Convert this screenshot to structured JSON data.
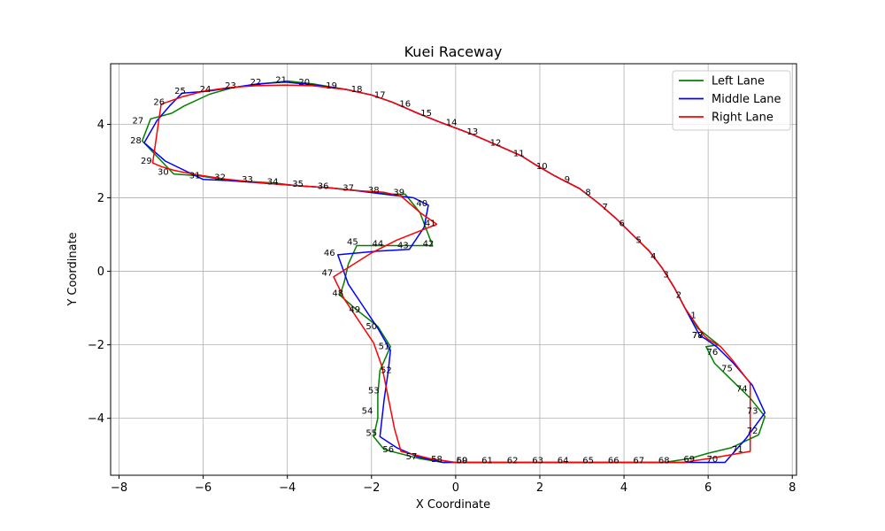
{
  "chart_data": {
    "type": "line",
    "title": "Kuei Raceway",
    "xlabel": "X Coordinate",
    "ylabel": "Y Coordinate",
    "xlim": [
      -8.2,
      8.1
    ],
    "ylim": [
      -5.55,
      5.65
    ],
    "xticks": [
      -8,
      -6,
      -4,
      -2,
      0,
      2,
      4,
      6,
      8
    ],
    "yticks": [
      -4,
      -2,
      0,
      2,
      4
    ],
    "grid": true,
    "legend_position": "top-right",
    "series": [
      {
        "name": "Left Lane",
        "color": "#008000",
        "x": [
          6.25,
          5.75,
          5.45,
          5.2,
          4.9,
          4.6,
          4.2,
          3.8,
          3.4,
          2.95,
          2.35,
          1.9,
          1.55,
          0.95,
          0.35,
          -0.35,
          -0.9,
          -1.5,
          -2.0,
          -2.6,
          -3.4,
          -4.0,
          -4.6,
          -5.3,
          -5.85,
          -6.45,
          -6.75,
          -7.25,
          -7.45,
          -6.95,
          -6.7,
          -6.1,
          -5.55,
          -4.95,
          -4.3,
          -3.7,
          -3.05,
          -2.35,
          -1.6,
          -1.2,
          -0.85,
          -0.55,
          -0.6,
          -1.05,
          -1.7,
          -2.35,
          -2.55,
          -2.65,
          -2.75,
          -2.35,
          -1.85,
          -1.55,
          -1.8,
          -1.85,
          -1.85,
          -1.95,
          -1.7,
          -0.85,
          -0.3,
          0.1,
          0.75,
          1.35,
          1.95,
          2.55,
          3.15,
          3.75,
          4.35,
          4.95,
          5.55,
          6.0,
          6.55,
          7.2,
          7.35,
          7.0,
          6.55,
          6.15,
          5.95,
          6.25
        ],
        "y": [
          -2.0,
          -1.55,
          -1.0,
          -0.45,
          0.1,
          0.55,
          1.0,
          1.45,
          1.85,
          2.25,
          2.6,
          2.9,
          3.15,
          3.45,
          3.75,
          4.05,
          4.3,
          4.6,
          4.8,
          4.95,
          5.1,
          5.18,
          5.1,
          5.0,
          4.82,
          4.5,
          4.3,
          4.15,
          3.55,
          2.95,
          2.65,
          2.6,
          2.5,
          2.45,
          2.4,
          2.32,
          2.28,
          2.2,
          2.1,
          2.1,
          1.6,
          0.7,
          0.7,
          0.7,
          0.7,
          0.7,
          0.2,
          -0.3,
          -0.65,
          -1.05,
          -1.5,
          -2.05,
          -2.7,
          -3.35,
          -4.0,
          -4.5,
          -4.85,
          -5.1,
          -5.2,
          -5.2,
          -5.2,
          -5.2,
          -5.2,
          -5.2,
          -5.2,
          -5.2,
          -5.2,
          -5.2,
          -5.1,
          -4.95,
          -4.8,
          -4.45,
          -3.95,
          -3.45,
          -2.95,
          -2.5,
          -2.05,
          -2.0
        ]
      },
      {
        "name": "Middle Lane",
        "color": "#0000ff",
        "x": [
          5.8,
          5.45,
          5.2,
          4.9,
          4.6,
          4.2,
          3.8,
          3.4,
          2.95,
          2.35,
          1.9,
          1.55,
          0.95,
          0.35,
          -0.35,
          -0.9,
          -1.5,
          -2.0,
          -2.6,
          -3.4,
          -4.05,
          -4.7,
          -5.3,
          -5.9,
          -6.5,
          -6.8,
          -7.1,
          -7.4,
          -6.9,
          -6.0,
          -5.4,
          -4.8,
          -4.2,
          -3.6,
          -3.0,
          -2.4,
          -1.7,
          -1.0,
          -0.65,
          -0.75,
          -1.1,
          -1.85,
          -2.8,
          -2.55,
          -2.2,
          -1.85,
          -1.55,
          -1.6,
          -1.7,
          -1.8,
          -1.4,
          -0.9,
          -0.3,
          0.3,
          0.9,
          1.5,
          2.1,
          2.7,
          3.3,
          3.9,
          4.5,
          5.1,
          5.75,
          6.4,
          6.9,
          7.35,
          7.05,
          6.6,
          6.2,
          5.95,
          5.8
        ],
        "y": [
          -1.75,
          -1.0,
          -0.45,
          0.1,
          0.55,
          1.0,
          1.45,
          1.85,
          2.25,
          2.6,
          2.9,
          3.15,
          3.45,
          3.75,
          4.05,
          4.3,
          4.6,
          4.8,
          4.95,
          5.08,
          5.15,
          5.1,
          5.0,
          4.9,
          4.85,
          4.5,
          4.1,
          3.5,
          3.0,
          2.5,
          2.47,
          2.42,
          2.37,
          2.32,
          2.27,
          2.2,
          2.1,
          2.0,
          1.8,
          1.2,
          0.6,
          0.55,
          0.45,
          -0.35,
          -0.95,
          -1.55,
          -2.15,
          -2.7,
          -3.5,
          -4.5,
          -4.8,
          -5.05,
          -5.2,
          -5.2,
          -5.2,
          -5.2,
          -5.2,
          -5.2,
          -5.2,
          -5.2,
          -5.2,
          -5.2,
          -5.2,
          -5.2,
          -4.55,
          -3.85,
          -3.1,
          -2.5,
          -2.05,
          -1.85,
          -1.75
        ]
      },
      {
        "name": "Right Lane",
        "color": "#ff0000",
        "x": [
          5.9,
          5.45,
          5.2,
          4.9,
          4.6,
          4.2,
          3.8,
          3.4,
          2.95,
          2.35,
          1.9,
          1.55,
          0.95,
          0.35,
          -0.35,
          -0.9,
          -1.5,
          -2.0,
          -2.6,
          -3.4,
          -4.05,
          -4.75,
          -5.4,
          -6.0,
          -6.5,
          -7.0,
          -7.2,
          -7.0,
          -6.7,
          -6.4,
          -6.0,
          -5.4,
          -4.8,
          -4.2,
          -3.6,
          -3.0,
          -2.4,
          -1.7,
          -1.3,
          -0.85,
          -0.45,
          -1.4,
          -2.0,
          -2.9,
          -2.65,
          -2.3,
          -1.95,
          -1.75,
          -1.6,
          -1.45,
          -1.3,
          -0.6,
          0.0,
          0.6,
          1.2,
          1.8,
          2.4,
          3.0,
          3.6,
          4.2,
          4.8,
          5.4,
          6.0,
          6.5,
          7.0,
          7.0,
          7.0,
          6.6,
          6.3,
          6.0,
          5.9
        ],
        "y": [
          -1.75,
          -1.0,
          -0.45,
          0.1,
          0.55,
          1.0,
          1.45,
          1.85,
          2.25,
          2.6,
          2.9,
          3.15,
          3.45,
          3.75,
          4.05,
          4.3,
          4.6,
          4.8,
          4.95,
          5.05,
          5.07,
          5.05,
          5.0,
          4.9,
          4.75,
          4.55,
          2.95,
          2.85,
          2.75,
          2.68,
          2.6,
          2.5,
          2.43,
          2.37,
          2.32,
          2.27,
          2.2,
          2.15,
          2.05,
          1.6,
          1.28,
          0.85,
          0.5,
          -0.15,
          -0.75,
          -1.35,
          -1.95,
          -2.6,
          -3.45,
          -4.3,
          -4.9,
          -5.1,
          -5.2,
          -5.2,
          -5.2,
          -5.2,
          -5.2,
          -5.2,
          -5.2,
          -5.2,
          -5.2,
          -5.2,
          -5.1,
          -5.0,
          -4.9,
          -3.7,
          -3.05,
          -2.45,
          -2.05,
          -1.85,
          -1.75
        ]
      }
    ],
    "point_labels": [
      {
        "text": "1",
        "x": 5.65,
        "y": -1.2
      },
      {
        "text": "2",
        "x": 5.3,
        "y": -0.65
      },
      {
        "text": "3",
        "x": 5.0,
        "y": -0.1
      },
      {
        "text": "4",
        "x": 4.7,
        "y": 0.4
      },
      {
        "text": "5",
        "x": 4.35,
        "y": 0.85
      },
      {
        "text": "6",
        "x": 3.95,
        "y": 1.3
      },
      {
        "text": "7",
        "x": 3.55,
        "y": 1.75
      },
      {
        "text": "8",
        "x": 3.15,
        "y": 2.15
      },
      {
        "text": "9",
        "x": 2.65,
        "y": 2.5
      },
      {
        "text": "10",
        "x": 2.05,
        "y": 2.85
      },
      {
        "text": "11",
        "x": 1.5,
        "y": 3.2
      },
      {
        "text": "12",
        "x": 0.95,
        "y": 3.5
      },
      {
        "text": "13",
        "x": 0.4,
        "y": 3.8
      },
      {
        "text": "14",
        "x": -0.1,
        "y": 4.05
      },
      {
        "text": "15",
        "x": -0.7,
        "y": 4.3
      },
      {
        "text": "16",
        "x": -1.2,
        "y": 4.55
      },
      {
        "text": "17",
        "x": -1.8,
        "y": 4.8
      },
      {
        "text": "18",
        "x": -2.35,
        "y": 4.95
      },
      {
        "text": "19",
        "x": -2.95,
        "y": 5.05
      },
      {
        "text": "20",
        "x": -3.6,
        "y": 5.15
      },
      {
        "text": "21",
        "x": -4.15,
        "y": 5.2
      },
      {
        "text": "22",
        "x": -4.75,
        "y": 5.15
      },
      {
        "text": "23",
        "x": -5.35,
        "y": 5.05
      },
      {
        "text": "24",
        "x": -5.95,
        "y": 4.95
      },
      {
        "text": "25",
        "x": -6.55,
        "y": 4.9
      },
      {
        "text": "26",
        "x": -7.05,
        "y": 4.6
      },
      {
        "text": "27",
        "x": -7.55,
        "y": 4.1
      },
      {
        "text": "28",
        "x": -7.6,
        "y": 3.55
      },
      {
        "text": "29",
        "x": -7.35,
        "y": 3.0
      },
      {
        "text": "30",
        "x": -6.95,
        "y": 2.7
      },
      {
        "text": "31",
        "x": -6.2,
        "y": 2.6
      },
      {
        "text": "32",
        "x": -5.6,
        "y": 2.55
      },
      {
        "text": "33",
        "x": -4.95,
        "y": 2.5
      },
      {
        "text": "34",
        "x": -4.35,
        "y": 2.43
      },
      {
        "text": "35",
        "x": -3.75,
        "y": 2.38
      },
      {
        "text": "36",
        "x": -3.15,
        "y": 2.32
      },
      {
        "text": "37",
        "x": -2.55,
        "y": 2.27
      },
      {
        "text": "38",
        "x": -1.95,
        "y": 2.2
      },
      {
        "text": "39",
        "x": -1.35,
        "y": 2.15
      },
      {
        "text": "40",
        "x": -0.8,
        "y": 1.85
      },
      {
        "text": "41",
        "x": -0.6,
        "y": 1.3
      },
      {
        "text": "42",
        "x": -0.65,
        "y": 0.75
      },
      {
        "text": "43",
        "x": -1.25,
        "y": 0.7
      },
      {
        "text": "44",
        "x": -1.85,
        "y": 0.75
      },
      {
        "text": "45",
        "x": -2.45,
        "y": 0.8
      },
      {
        "text": "46",
        "x": -3.0,
        "y": 0.5
      },
      {
        "text": "47",
        "x": -3.05,
        "y": -0.05
      },
      {
        "text": "48",
        "x": -2.8,
        "y": -0.6
      },
      {
        "text": "49",
        "x": -2.4,
        "y": -1.05
      },
      {
        "text": "50",
        "x": -2.0,
        "y": -1.5
      },
      {
        "text": "51",
        "x": -1.7,
        "y": -2.05
      },
      {
        "text": "52",
        "x": -1.65,
        "y": -2.7
      },
      {
        "text": "53",
        "x": -1.95,
        "y": -3.25
      },
      {
        "text": "54",
        "x": -2.1,
        "y": -3.8
      },
      {
        "text": "55",
        "x": -2.0,
        "y": -4.4
      },
      {
        "text": "56",
        "x": -1.6,
        "y": -4.85
      },
      {
        "text": "57",
        "x": -1.05,
        "y": -5.05
      },
      {
        "text": "58",
        "x": -0.45,
        "y": -5.12
      },
      {
        "text": "59",
        "x": 0.15,
        "y": -5.15
      },
      {
        "text": "60",
        "x": 0.15,
        "y": -5.15
      },
      {
        "text": "61",
        "x": 0.75,
        "y": -5.15
      },
      {
        "text": "62",
        "x": 1.35,
        "y": -5.15
      },
      {
        "text": "63",
        "x": 1.95,
        "y": -5.15
      },
      {
        "text": "64",
        "x": 2.55,
        "y": -5.15
      },
      {
        "text": "65",
        "x": 3.15,
        "y": -5.15
      },
      {
        "text": "66",
        "x": 3.75,
        "y": -5.15
      },
      {
        "text": "67",
        "x": 4.35,
        "y": -5.15
      },
      {
        "text": "68",
        "x": 4.95,
        "y": -5.15
      },
      {
        "text": "69",
        "x": 5.55,
        "y": -5.12
      },
      {
        "text": "70",
        "x": 6.1,
        "y": -5.12
      },
      {
        "text": "71",
        "x": 6.7,
        "y": -4.85
      },
      {
        "text": "72",
        "x": 7.05,
        "y": -4.35
      },
      {
        "text": "73",
        "x": 7.05,
        "y": -3.8
      },
      {
        "text": "74",
        "x": 6.8,
        "y": -3.2
      },
      {
        "text": "75",
        "x": 6.45,
        "y": -2.65
      },
      {
        "text": "76",
        "x": 6.1,
        "y": -2.2
      },
      {
        "text": "77",
        "x": 5.75,
        "y": -1.75
      },
      {
        "text": "78",
        "x": 5.75,
        "y": -1.75
      }
    ]
  }
}
